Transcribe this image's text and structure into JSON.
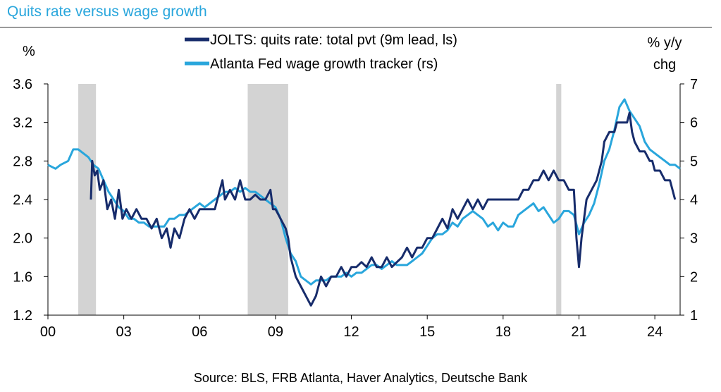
{
  "title": "Quits rate versus wage growth",
  "source": "Source: BLS, FRB Atlanta, Haver Analytics, Deutsche Bank",
  "chart_data": {
    "type": "line",
    "title": "Quits rate versus wage growth",
    "left_axis": {
      "unit": "%",
      "range": [
        1.2,
        3.6
      ],
      "ticks": [
        "1.2",
        "1.6",
        "2.0",
        "2.4",
        "2.8",
        "3.2",
        "3.6"
      ]
    },
    "right_axis": {
      "unit_line1": "% y/y",
      "unit_line2": "chg",
      "range": [
        1,
        7
      ],
      "ticks": [
        "1",
        "2",
        "3",
        "4",
        "5",
        "6",
        "7"
      ]
    },
    "x_axis": {
      "range": [
        0,
        25
      ],
      "ticks": [
        {
          "value": 0,
          "label": "00"
        },
        {
          "value": 3,
          "label": "03"
        },
        {
          "value": 6,
          "label": "06"
        },
        {
          "value": 9,
          "label": "09"
        },
        {
          "value": 12,
          "label": "12"
        },
        {
          "value": 15,
          "label": "15"
        },
        {
          "value": 18,
          "label": "18"
        },
        {
          "value": 21,
          "label": "21"
        },
        {
          "value": 24,
          "label": "24"
        }
      ]
    },
    "recessions": [
      [
        1.2,
        1.9
      ],
      [
        7.9,
        9.5
      ],
      [
        20.1,
        20.3
      ]
    ],
    "grid": false,
    "legend_placement": "top-center",
    "series": [
      {
        "name": "JOLTS: quits rate: total pvt (9m lead, ls)",
        "axis": "left",
        "color": "#172c6b",
        "points": [
          [
            1.7,
            2.4
          ],
          [
            1.75,
            2.8
          ],
          [
            1.85,
            2.65
          ],
          [
            1.95,
            2.7
          ],
          [
            2.05,
            2.5
          ],
          [
            2.2,
            2.6
          ],
          [
            2.35,
            2.3
          ],
          [
            2.5,
            2.4
          ],
          [
            2.65,
            2.2
          ],
          [
            2.8,
            2.5
          ],
          [
            2.95,
            2.2
          ],
          [
            3.1,
            2.3
          ],
          [
            3.3,
            2.2
          ],
          [
            3.5,
            2.3
          ],
          [
            3.7,
            2.2
          ],
          [
            3.9,
            2.2
          ],
          [
            4.1,
            2.1
          ],
          [
            4.3,
            2.2
          ],
          [
            4.5,
            2.0
          ],
          [
            4.7,
            2.1
          ],
          [
            4.85,
            1.9
          ],
          [
            5.0,
            2.1
          ],
          [
            5.2,
            2.0
          ],
          [
            5.4,
            2.2
          ],
          [
            5.6,
            2.3
          ],
          [
            5.8,
            2.2
          ],
          [
            6.0,
            2.3
          ],
          [
            6.2,
            2.3
          ],
          [
            6.4,
            2.3
          ],
          [
            6.6,
            2.3
          ],
          [
            6.8,
            2.5
          ],
          [
            6.9,
            2.6
          ],
          [
            7.0,
            2.4
          ],
          [
            7.2,
            2.5
          ],
          [
            7.4,
            2.4
          ],
          [
            7.6,
            2.6
          ],
          [
            7.8,
            2.4
          ],
          [
            8.0,
            2.4
          ],
          [
            8.2,
            2.45
          ],
          [
            8.4,
            2.4
          ],
          [
            8.6,
            2.4
          ],
          [
            8.8,
            2.5
          ],
          [
            8.9,
            2.3
          ],
          [
            9.0,
            2.3
          ],
          [
            9.2,
            2.2
          ],
          [
            9.4,
            2.1
          ],
          [
            9.5,
            2.0
          ],
          [
            9.6,
            1.8
          ],
          [
            9.8,
            1.6
          ],
          [
            10.0,
            1.5
          ],
          [
            10.2,
            1.4
          ],
          [
            10.4,
            1.3
          ],
          [
            10.6,
            1.4
          ],
          [
            10.8,
            1.6
          ],
          [
            11.0,
            1.5
          ],
          [
            11.2,
            1.6
          ],
          [
            11.4,
            1.6
          ],
          [
            11.6,
            1.7
          ],
          [
            11.8,
            1.6
          ],
          [
            12.0,
            1.7
          ],
          [
            12.2,
            1.7
          ],
          [
            12.4,
            1.75
          ],
          [
            12.6,
            1.7
          ],
          [
            12.8,
            1.8
          ],
          [
            13.0,
            1.7
          ],
          [
            13.2,
            1.7
          ],
          [
            13.4,
            1.8
          ],
          [
            13.6,
            1.7
          ],
          [
            13.8,
            1.75
          ],
          [
            14.0,
            1.8
          ],
          [
            14.2,
            1.9
          ],
          [
            14.4,
            1.8
          ],
          [
            14.6,
            1.9
          ],
          [
            14.8,
            1.9
          ],
          [
            15.0,
            2.0
          ],
          [
            15.2,
            2.0
          ],
          [
            15.4,
            2.1
          ],
          [
            15.6,
            2.2
          ],
          [
            15.8,
            2.1
          ],
          [
            16.0,
            2.3
          ],
          [
            16.2,
            2.2
          ],
          [
            16.4,
            2.3
          ],
          [
            16.6,
            2.4
          ],
          [
            16.8,
            2.3
          ],
          [
            17.0,
            2.4
          ],
          [
            17.2,
            2.3
          ],
          [
            17.4,
            2.4
          ],
          [
            17.6,
            2.4
          ],
          [
            17.8,
            2.4
          ],
          [
            18.0,
            2.4
          ],
          [
            18.2,
            2.4
          ],
          [
            18.4,
            2.4
          ],
          [
            18.6,
            2.4
          ],
          [
            18.8,
            2.5
          ],
          [
            19.0,
            2.5
          ],
          [
            19.2,
            2.6
          ],
          [
            19.4,
            2.6
          ],
          [
            19.6,
            2.7
          ],
          [
            19.8,
            2.6
          ],
          [
            20.0,
            2.7
          ],
          [
            20.2,
            2.6
          ],
          [
            20.4,
            2.6
          ],
          [
            20.6,
            2.5
          ],
          [
            20.8,
            2.5
          ],
          [
            20.9,
            2.0
          ],
          [
            21.0,
            1.7
          ],
          [
            21.1,
            2.0
          ],
          [
            21.3,
            2.4
          ],
          [
            21.5,
            2.5
          ],
          [
            21.7,
            2.6
          ],
          [
            21.9,
            2.8
          ],
          [
            22.0,
            3.0
          ],
          [
            22.2,
            3.1
          ],
          [
            22.4,
            3.1
          ],
          [
            22.5,
            3.2
          ],
          [
            22.7,
            3.2
          ],
          [
            22.9,
            3.2
          ],
          [
            23.0,
            3.3
          ],
          [
            23.1,
            3.1
          ],
          [
            23.2,
            3.0
          ],
          [
            23.4,
            2.9
          ],
          [
            23.6,
            2.9
          ],
          [
            23.8,
            2.8
          ],
          [
            23.9,
            2.8
          ],
          [
            24.0,
            2.7
          ],
          [
            24.2,
            2.7
          ],
          [
            24.4,
            2.6
          ],
          [
            24.6,
            2.6
          ],
          [
            24.8,
            2.4
          ]
        ]
      },
      {
        "name": "Atlanta Fed wage growth tracker (rs)",
        "axis": "right",
        "color": "#29a6dc",
        "points": [
          [
            0.0,
            4.9
          ],
          [
            0.3,
            4.8
          ],
          [
            0.5,
            4.9
          ],
          [
            0.8,
            5.0
          ],
          [
            1.0,
            5.3
          ],
          [
            1.2,
            5.3
          ],
          [
            1.4,
            5.2
          ],
          [
            1.6,
            5.1
          ],
          [
            1.8,
            4.9
          ],
          [
            2.0,
            4.8
          ],
          [
            2.2,
            4.5
          ],
          [
            2.4,
            4.2
          ],
          [
            2.6,
            4.0
          ],
          [
            2.8,
            3.8
          ],
          [
            3.0,
            3.7
          ],
          [
            3.2,
            3.5
          ],
          [
            3.4,
            3.5
          ],
          [
            3.6,
            3.4
          ],
          [
            3.8,
            3.4
          ],
          [
            4.0,
            3.3
          ],
          [
            4.2,
            3.3
          ],
          [
            4.4,
            3.3
          ],
          [
            4.6,
            3.3
          ],
          [
            4.8,
            3.5
          ],
          [
            5.0,
            3.5
          ],
          [
            5.2,
            3.6
          ],
          [
            5.4,
            3.6
          ],
          [
            5.6,
            3.7
          ],
          [
            5.8,
            3.8
          ],
          [
            6.0,
            3.9
          ],
          [
            6.2,
            3.8
          ],
          [
            6.4,
            3.9
          ],
          [
            6.6,
            4.0
          ],
          [
            6.8,
            4.1
          ],
          [
            7.0,
            4.2
          ],
          [
            7.2,
            4.2
          ],
          [
            7.4,
            4.3
          ],
          [
            7.6,
            4.2
          ],
          [
            7.8,
            4.3
          ],
          [
            8.0,
            4.2
          ],
          [
            8.2,
            4.2
          ],
          [
            8.4,
            4.1
          ],
          [
            8.6,
            4.0
          ],
          [
            8.8,
            3.9
          ],
          [
            9.0,
            3.8
          ],
          [
            9.2,
            3.5
          ],
          [
            9.4,
            3.0
          ],
          [
            9.6,
            2.6
          ],
          [
            9.8,
            2.4
          ],
          [
            10.0,
            2.0
          ],
          [
            10.2,
            1.9
          ],
          [
            10.4,
            1.8
          ],
          [
            10.6,
            1.9
          ],
          [
            10.8,
            1.9
          ],
          [
            11.0,
            1.9
          ],
          [
            11.2,
            2.0
          ],
          [
            11.4,
            2.0
          ],
          [
            11.6,
            2.0
          ],
          [
            11.8,
            2.1
          ],
          [
            12.0,
            2.0
          ],
          [
            12.2,
            2.1
          ],
          [
            12.4,
            2.1
          ],
          [
            12.6,
            2.2
          ],
          [
            12.8,
            2.3
          ],
          [
            13.0,
            2.3
          ],
          [
            13.2,
            2.2
          ],
          [
            13.4,
            2.3
          ],
          [
            13.6,
            2.4
          ],
          [
            13.8,
            2.3
          ],
          [
            14.0,
            2.3
          ],
          [
            14.2,
            2.3
          ],
          [
            14.4,
            2.4
          ],
          [
            14.6,
            2.5
          ],
          [
            14.8,
            2.6
          ],
          [
            15.0,
            2.8
          ],
          [
            15.2,
            3.0
          ],
          [
            15.4,
            3.1
          ],
          [
            15.6,
            3.1
          ],
          [
            15.8,
            3.2
          ],
          [
            16.0,
            3.4
          ],
          [
            16.2,
            3.3
          ],
          [
            16.4,
            3.5
          ],
          [
            16.6,
            3.6
          ],
          [
            16.8,
            3.7
          ],
          [
            17.0,
            3.6
          ],
          [
            17.2,
            3.5
          ],
          [
            17.4,
            3.3
          ],
          [
            17.6,
            3.4
          ],
          [
            17.8,
            3.2
          ],
          [
            18.0,
            3.4
          ],
          [
            18.2,
            3.3
          ],
          [
            18.4,
            3.3
          ],
          [
            18.6,
            3.6
          ],
          [
            18.8,
            3.7
          ],
          [
            19.0,
            3.8
          ],
          [
            19.2,
            3.9
          ],
          [
            19.4,
            3.7
          ],
          [
            19.6,
            3.8
          ],
          [
            19.8,
            3.6
          ],
          [
            20.0,
            3.4
          ],
          [
            20.2,
            3.5
          ],
          [
            20.4,
            3.7
          ],
          [
            20.6,
            3.7
          ],
          [
            20.8,
            3.6
          ],
          [
            21.0,
            3.1
          ],
          [
            21.2,
            3.4
          ],
          [
            21.4,
            3.6
          ],
          [
            21.6,
            3.9
          ],
          [
            21.8,
            4.4
          ],
          [
            22.0,
            5.0
          ],
          [
            22.2,
            5.3
          ],
          [
            22.4,
            5.8
          ],
          [
            22.6,
            6.4
          ],
          [
            22.8,
            6.6
          ],
          [
            23.0,
            6.3
          ],
          [
            23.2,
            6.1
          ],
          [
            23.4,
            5.9
          ],
          [
            23.6,
            5.5
          ],
          [
            23.8,
            5.3
          ],
          [
            24.0,
            5.2
          ],
          [
            24.2,
            5.1
          ],
          [
            24.4,
            5.0
          ],
          [
            24.6,
            4.9
          ],
          [
            24.8,
            4.9
          ],
          [
            25.0,
            4.8
          ]
        ]
      }
    ]
  }
}
